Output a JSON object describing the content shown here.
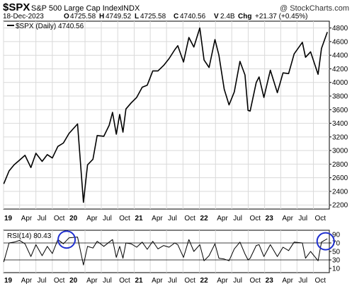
{
  "header": {
    "symbol": "$SPX",
    "name": "S&P 500 Large Cap Index",
    "exchange": "INDX",
    "watermark": "@ StockCharts.com",
    "date": "18-Dec-2023",
    "ohlc": {
      "open_label": "O",
      "open": "4725.58",
      "high_label": "H",
      "high": "4749.52",
      "low_label": "L",
      "low": "4725.58",
      "close_label": "C",
      "close": "4740.56",
      "volume_label": "V",
      "volume": "2.4B",
      "change_label": "Chg",
      "change": "+21.37 (+0.45%)"
    }
  },
  "chart_data": [
    {
      "type": "line",
      "legend": "$SPX (Daily) 4740.56",
      "series": [
        {
          "name": "$SPX (Daily)",
          "x": [
            "2019-01-02",
            "2019-02-01",
            "2019-03-01",
            "2019-04-01",
            "2019-05-01",
            "2019-06-03",
            "2019-07-01",
            "2019-08-05",
            "2019-09-03",
            "2019-10-01",
            "2019-11-01",
            "2019-12-02",
            "2020-01-02",
            "2020-02-19",
            "2020-03-23",
            "2020-04-15",
            "2020-05-15",
            "2020-06-08",
            "2020-07-15",
            "2020-08-14",
            "2020-09-02",
            "2020-09-23",
            "2020-10-12",
            "2020-10-30",
            "2020-11-16",
            "2020-12-15",
            "2021-01-15",
            "2021-02-15",
            "2021-03-15",
            "2021-04-15",
            "2021-05-14",
            "2021-06-15",
            "2021-07-15",
            "2021-08-16",
            "2021-09-02",
            "2021-10-04",
            "2021-11-03",
            "2021-12-01",
            "2022-01-03",
            "2022-01-27",
            "2022-02-24",
            "2022-03-29",
            "2022-04-20",
            "2022-05-20",
            "2022-06-16",
            "2022-07-15",
            "2022-08-16",
            "2022-09-13",
            "2022-09-30",
            "2022-10-12",
            "2022-11-15",
            "2022-12-01",
            "2022-12-28",
            "2023-02-02",
            "2023-03-13",
            "2023-04-14",
            "2023-05-15",
            "2023-06-15",
            "2023-07-31",
            "2023-08-18",
            "2023-09-15",
            "2023-10-27",
            "2023-11-15",
            "2023-12-18"
          ],
          "y": [
            2510,
            2700,
            2790,
            2860,
            2930,
            2750,
            2960,
            2840,
            2940,
            2890,
            3060,
            3110,
            3250,
            3390,
            2240,
            2790,
            2870,
            3220,
            3210,
            3370,
            3560,
            3240,
            3530,
            3270,
            3610,
            3700,
            3780,
            3930,
            3960,
            4170,
            4170,
            4250,
            4350,
            4480,
            4540,
            4300,
            4660,
            4520,
            4800,
            4330,
            4220,
            4630,
            4400,
            3900,
            3670,
            3860,
            4310,
            4110,
            3590,
            3580,
            4000,
            4080,
            3780,
            4180,
            3850,
            4140,
            4130,
            4420,
            4590,
            4370,
            4450,
            4120,
            4500,
            4740
          ]
        }
      ],
      "y_ticks": [
        2200,
        2400,
        2600,
        2800,
        3000,
        3200,
        3400,
        3600,
        3800,
        4000,
        4200,
        4400,
        4600,
        4800
      ],
      "ylim": [
        2140,
        4900
      ],
      "xlim": [
        "2019-01-01",
        "2023-12-29"
      ],
      "x_tick_labels": [
        {
          "label": "19",
          "date": "2019-01-01",
          "bold": true
        },
        {
          "label": "Apr",
          "date": "2019-04-01"
        },
        {
          "label": "Jul",
          "date": "2019-07-01"
        },
        {
          "label": "Oct",
          "date": "2019-10-01"
        },
        {
          "label": "20",
          "date": "2020-01-01",
          "bold": true
        },
        {
          "label": "Apr",
          "date": "2020-04-01"
        },
        {
          "label": "Jul",
          "date": "2020-07-01"
        },
        {
          "label": "Oct",
          "date": "2020-10-01"
        },
        {
          "label": "21",
          "date": "2021-01-01",
          "bold": true
        },
        {
          "label": "Apr",
          "date": "2021-04-01"
        },
        {
          "label": "Jul",
          "date": "2021-07-01"
        },
        {
          "label": "Oct",
          "date": "2021-10-01"
        },
        {
          "label": "22",
          "date": "2022-01-01",
          "bold": true
        },
        {
          "label": "Apr",
          "date": "2022-04-01"
        },
        {
          "label": "Jul",
          "date": "2022-07-01"
        },
        {
          "label": "Oct",
          "date": "2022-10-01"
        },
        {
          "label": "23",
          "date": "2023-01-01",
          "bold": true
        },
        {
          "label": "Apr",
          "date": "2023-04-01"
        },
        {
          "label": "Jul",
          "date": "2023-07-01"
        },
        {
          "label": "Oct",
          "date": "2023-10-01"
        }
      ],
      "grid": true,
      "line_color": "#000000",
      "grid_color": "#d9d9d9"
    },
    {
      "type": "line",
      "legend": "RSI(14) 80.43",
      "series": [
        {
          "name": "RSI(14)",
          "x": [
            "2019-01-02",
            "2019-02-01",
            "2019-03-01",
            "2019-04-01",
            "2019-05-01",
            "2019-06-03",
            "2019-07-01",
            "2019-08-05",
            "2019-09-03",
            "2019-10-01",
            "2019-11-01",
            "2019-12-02",
            "2020-01-02",
            "2020-02-19",
            "2020-03-23",
            "2020-04-15",
            "2020-05-15",
            "2020-06-08",
            "2020-07-15",
            "2020-08-14",
            "2020-09-02",
            "2020-09-23",
            "2020-10-12",
            "2020-10-30",
            "2020-11-16",
            "2020-12-15",
            "2021-01-15",
            "2021-02-15",
            "2021-03-15",
            "2021-04-15",
            "2021-05-14",
            "2021-06-15",
            "2021-07-15",
            "2021-08-16",
            "2021-09-02",
            "2021-10-04",
            "2021-11-03",
            "2021-12-01",
            "2022-01-03",
            "2022-01-27",
            "2022-02-24",
            "2022-03-29",
            "2022-04-20",
            "2022-05-20",
            "2022-06-16",
            "2022-07-15",
            "2022-08-16",
            "2022-09-13",
            "2022-09-30",
            "2022-10-12",
            "2022-11-15",
            "2022-12-01",
            "2022-12-28",
            "2023-02-02",
            "2023-03-13",
            "2023-04-14",
            "2023-05-15",
            "2023-06-15",
            "2023-07-31",
            "2023-08-18",
            "2023-09-15",
            "2023-10-27",
            "2023-11-15",
            "2023-12-18"
          ],
          "y": [
            25,
            70,
            72,
            76,
            68,
            38,
            66,
            40,
            62,
            45,
            78,
            68,
            82,
            84,
            18,
            62,
            58,
            74,
            62,
            72,
            78,
            36,
            62,
            34,
            70,
            68,
            60,
            72,
            55,
            74,
            56,
            64,
            60,
            70,
            66,
            36,
            78,
            50,
            66,
            28,
            40,
            68,
            34,
            32,
            28,
            56,
            72,
            44,
            30,
            34,
            64,
            66,
            38,
            66,
            38,
            60,
            52,
            72,
            70,
            34,
            50,
            28,
            72,
            80
          ]
        }
      ],
      "y_ticks": [
        10,
        30,
        50,
        70,
        90
      ],
      "ylim": [
        0,
        100
      ],
      "reference_lines": [
        30,
        70
      ],
      "highlight_circles": [
        {
          "x": "2019-12-20",
          "y": 78
        },
        {
          "x": "2023-12-08",
          "y": 74
        }
      ],
      "highlight_color": "#1f2fcf",
      "x_tick_labels_same_as_price": true,
      "grid": true,
      "line_color": "#000000"
    }
  ]
}
